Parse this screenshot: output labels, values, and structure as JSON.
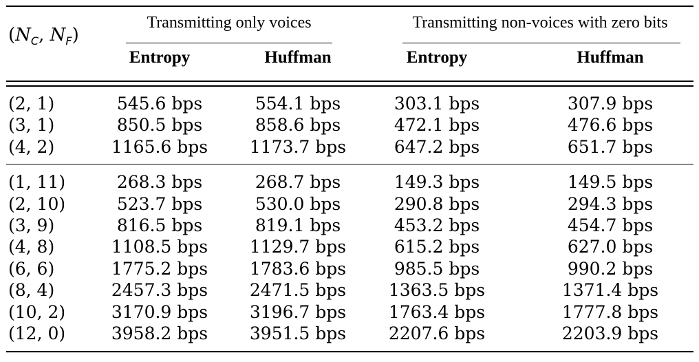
{
  "table": {
    "pair_header": {
      "open": "(",
      "n": "N",
      "sub_c": "C",
      "comma": ", ",
      "sub_f": "F",
      "close": ")"
    },
    "groups": [
      {
        "label": "Transmitting only voices"
      },
      {
        "label": "Transmitting non-voices with zero bits"
      }
    ],
    "columns": [
      "Entropy",
      "Huffman",
      "Entropy",
      "Huffman"
    ],
    "sections": [
      {
        "rows": [
          {
            "pair": "(2, 1)",
            "values": [
              "545.6 bps",
              "554.1 bps",
              "303.1 bps",
              "307.9 bps"
            ]
          },
          {
            "pair": "(3, 1)",
            "values": [
              "850.5 bps",
              "858.6 bps",
              "472.1 bps",
              "476.6 bps"
            ]
          },
          {
            "pair": "(4, 2)",
            "values": [
              "1165.6 bps",
              "1173.7 bps",
              "647.2 bps",
              "651.7 bps"
            ]
          }
        ]
      },
      {
        "rows": [
          {
            "pair": "(1, 11)",
            "values": [
              "268.3 bps",
              "268.7 bps",
              "149.3 bps",
              "149.5 bps"
            ]
          },
          {
            "pair": "(2, 10)",
            "values": [
              "523.7 bps",
              "530.0 bps",
              "290.8 bps",
              "294.3 bps"
            ]
          },
          {
            "pair": "(3, 9)",
            "values": [
              "816.5 bps",
              "819.1 bps",
              "453.2 bps",
              "454.7 bps"
            ]
          },
          {
            "pair": "(4, 8)",
            "values": [
              "1108.5 bps",
              "1129.7 bps",
              "615.2 bps",
              "627.0 bps"
            ]
          },
          {
            "pair": "(6, 6)",
            "values": [
              "1775.2 bps",
              "1783.6 bps",
              "985.5 bps",
              "990.2 bps"
            ]
          },
          {
            "pair": "(8, 4)",
            "values": [
              "2457.3 bps",
              "2471.5 bps",
              "1363.5 bps",
              "1371.4 bps"
            ]
          },
          {
            "pair": "(10, 2)",
            "values": [
              "3170.9 bps",
              "3196.7 bps",
              "1763.4 bps",
              "1777.8 bps"
            ]
          },
          {
            "pair": "(12, 0)",
            "values": [
              "3958.2 bps",
              "3951.5 bps",
              "2207.6 bps",
              "2203.9 bps"
            ]
          }
        ]
      }
    ]
  }
}
